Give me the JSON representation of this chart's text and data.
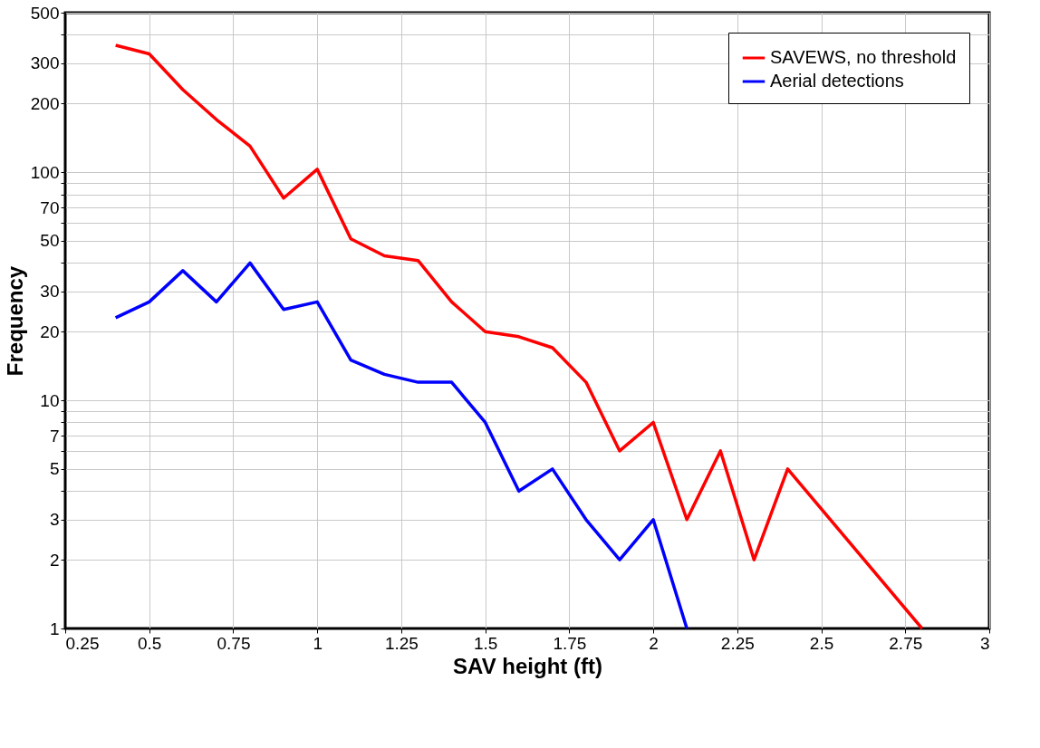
{
  "chart_data": {
    "type": "line",
    "xlabel": "SAV height (ft)",
    "ylabel": "Frequency",
    "log": "y",
    "grid": true,
    "legend": "top right",
    "marker": "none",
    "line_style": "solid",
    "xlim": [
      0.25,
      3
    ],
    "xticks": [
      0.25,
      0.5,
      0.75,
      1,
      1.25,
      1.5,
      1.75,
      2,
      2.25,
      2.5,
      2.75,
      3
    ],
    "ylim": [
      1,
      500
    ],
    "yticks": [
      1,
      2,
      3,
      {
        "value": 4,
        "label": null
      },
      5,
      {
        "value": 6,
        "label": null
      },
      7,
      {
        "value": 8,
        "label": null
      },
      {
        "value": 9,
        "label": null
      },
      10,
      20,
      30,
      {
        "value": 40,
        "label": null
      },
      50,
      {
        "value": 60,
        "label": null
      },
      70,
      {
        "value": 80,
        "label": null
      },
      {
        "value": 90,
        "label": null
      },
      100,
      200,
      300,
      {
        "value": 400,
        "label": null
      },
      500
    ],
    "series": [
      {
        "name": "SAVEWS, no threshold",
        "color": "#ff0000",
        "x": [
          0.4,
          0.5,
          0.6,
          0.7,
          0.8,
          0.9,
          1.0,
          1.1,
          1.2,
          1.3,
          1.4,
          1.5,
          1.6,
          1.7,
          1.8,
          1.9,
          2.0,
          2.1,
          2.2,
          2.3,
          2.4,
          2.8
        ],
        "values": [
          360,
          330,
          230,
          170,
          130,
          77,
          103,
          51,
          43,
          41,
          27,
          20,
          19,
          17,
          12,
          6,
          8,
          3,
          6,
          2,
          5,
          1
        ]
      },
      {
        "name": "Aerial detections",
        "color": "#0000ff",
        "x": [
          0.4,
          0.5,
          0.6,
          0.7,
          0.8,
          0.9,
          1.0,
          1.1,
          1.2,
          1.3,
          1.4,
          1.5,
          1.6,
          1.7,
          1.8,
          1.9,
          2.0,
          2.1
        ],
        "values": [
          23,
          27,
          37,
          27,
          40,
          25,
          27,
          15,
          13,
          12,
          12,
          8,
          4,
          5,
          3,
          2,
          3,
          1
        ]
      }
    ]
  }
}
